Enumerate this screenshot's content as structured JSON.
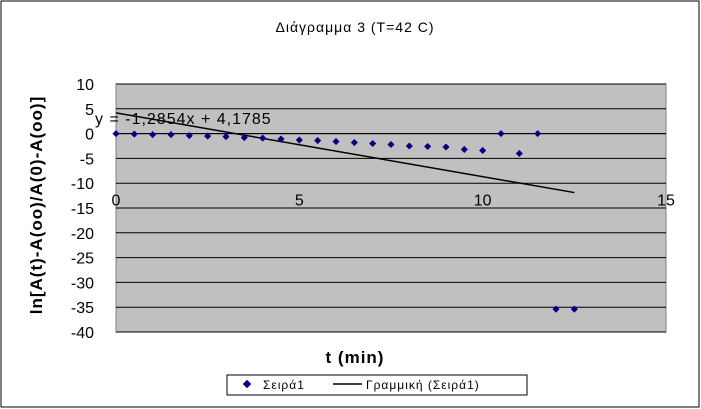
{
  "chart_data": {
    "type": "scatter",
    "title": "Διάγραμμα 3 (T=42 C)",
    "xlabel": "t (min)",
    "ylabel": "ln[A(t)-A(oo)/A(0)-A(oo)]",
    "xlim": [
      0,
      15
    ],
    "ylim": [
      -40,
      10
    ],
    "xticks": [
      0,
      5,
      10,
      15
    ],
    "yticks": [
      10,
      5,
      0,
      -5,
      -10,
      -15,
      -20,
      -25,
      -30,
      -35,
      -40
    ],
    "grid": true,
    "series": [
      {
        "name": "Σειρά1",
        "x": [
          0,
          0.5,
          1,
          1.5,
          2,
          2.5,
          3,
          3.5,
          4,
          4.5,
          5,
          5.5,
          6,
          6.5,
          7,
          7.5,
          8,
          8.5,
          9,
          9.5,
          10,
          10.5,
          11,
          11.5,
          12,
          12.5
        ],
        "y": [
          0,
          -0.1,
          -0.2,
          -0.2,
          -0.4,
          -0.5,
          -0.6,
          -0.8,
          -0.9,
          -1.1,
          -1.3,
          -1.4,
          -1.6,
          -1.8,
          -2.0,
          -2.2,
          -2.5,
          -2.6,
          -2.7,
          -3.2,
          -3.4,
          0,
          -4.0,
          0,
          -35.4,
          -35.4
        ],
        "color": "#000080"
      }
    ],
    "trendline": {
      "name": "Γραμμική (Σειρά1)",
      "equation": "y = -1,2854x + 4,1785",
      "slope": -1.2854,
      "intercept": 4.1785,
      "x_range": [
        0,
        12.5
      ],
      "color": "#000000"
    },
    "legend_position": "bottom",
    "plot_background": "#c0c0c0"
  }
}
